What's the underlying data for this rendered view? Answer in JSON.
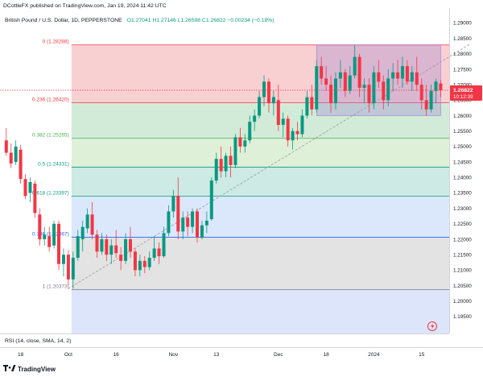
{
  "header": {
    "publisher": "DCottleFX published on TradingView.com, Jan 19, 2024 11:42 UTC",
    "instrument": "British Pound / U.S. Dollar, 1D, PEPPERSTONE",
    "ohlc_text": "O1.27041  H1.27146  L1.26598  C1.26822  −0.00234 (−0.18%)"
  },
  "indicator": {
    "label": "RSI (14, close, SMA, 14, 2)"
  },
  "footer": {
    "brand": "TradingView"
  },
  "price_label": {
    "price": "1.26822",
    "countdown": "10:12:39"
  },
  "colors": {
    "up": "#089981",
    "down": "#f23645",
    "trend": "#9598a1",
    "price_line": "#f23645",
    "box": "#9c7fd1"
  },
  "chart_data": {
    "type": "candlestick",
    "title": "British Pound / U.S. Dollar, 1D, PEPPERSTONE",
    "price_range": [
      1.1895,
      1.2935
    ],
    "y_ticks": [
      "1.29000",
      "1.28500",
      "1.28000",
      "1.27500",
      "1.27000",
      "1.26500",
      "1.26000",
      "1.25500",
      "1.25000",
      "1.24500",
      "1.24000",
      "1.23500",
      "1.23000",
      "1.22500",
      "1.22000",
      "1.21500",
      "1.21000",
      "1.20500",
      "1.20000",
      "1.19500"
    ],
    "x_ticks": [
      {
        "label": "18",
        "bar": 3
      },
      {
        "label": "Oct",
        "bar": 13
      },
      {
        "label": "16",
        "bar": 23
      },
      {
        "label": "Nov",
        "bar": 35
      },
      {
        "label": "13",
        "bar": 44
      },
      {
        "label": "Dec",
        "bar": 57
      },
      {
        "label": "18",
        "bar": 67
      },
      {
        "label": "2024",
        "bar": 77
      },
      {
        "label": "15",
        "bar": 87
      }
    ],
    "fibonacci": [
      {
        "ratio": "0",
        "price": 1.28288,
        "label": "0 (1.28288)",
        "color": "#f23645",
        "fill": "#f8d0d2"
      },
      {
        "ratio": "0.236",
        "price": 1.2642,
        "label": "0.236 (1.26420)",
        "color": "#f23645",
        "fill": "#d2ebd8"
      },
      {
        "ratio": "0.382",
        "price": 1.25265,
        "label": "0.382 (1.25265)",
        "color": "#4caf50",
        "fill": "#dff0d8"
      },
      {
        "ratio": "0.5",
        "price": 1.24331,
        "label": "0.5 (1.24331)",
        "color": "#089981",
        "fill": "#cdeae4"
      },
      {
        "ratio": "0.618",
        "price": 1.23397,
        "label": "0.618 (1.23397)",
        "color": "#089981",
        "fill": "#dbe8fb"
      },
      {
        "ratio": "0.786",
        "price": 1.22067,
        "label": "0.786 (1.22067)",
        "color": "#2962ff",
        "fill": "#e3e3e3"
      },
      {
        "ratio": "1",
        "price": 1.20373,
        "label": "1 (1.20373)",
        "color": "#787b86",
        "fill": "#dde5fb"
      }
    ],
    "fib_start_bar": 14,
    "trendline": {
      "start": {
        "bar": 13,
        "price": 1.204
      },
      "end": {
        "bar": 97,
        "price": 1.283
      }
    },
    "range_box": {
      "start_bar": 65,
      "end_bar": 91,
      "high": 1.2828,
      "low": 1.26
    },
    "last_price": 1.26822,
    "candles": [
      [
        1.252,
        1.256,
        1.247,
        1.248
      ],
      [
        1.248,
        1.251,
        1.243,
        1.2445
      ],
      [
        1.245,
        1.252,
        1.244,
        1.25
      ],
      [
        1.249,
        1.2505,
        1.238,
        1.2395
      ],
      [
        1.2395,
        1.241,
        1.233,
        1.234
      ],
      [
        1.235,
        1.24,
        1.232,
        1.2385
      ],
      [
        1.238,
        1.239,
        1.227,
        1.2285
      ],
      [
        1.228,
        1.23,
        1.218,
        1.22
      ],
      [
        1.22,
        1.224,
        1.218,
        1.2215
      ],
      [
        1.221,
        1.224,
        1.216,
        1.2175
      ],
      [
        1.218,
        1.226,
        1.217,
        1.225
      ],
      [
        1.225,
        1.226,
        1.21,
        1.212
      ],
      [
        1.212,
        1.217,
        1.208,
        1.215
      ],
      [
        1.215,
        1.2165,
        1.205,
        1.207
      ],
      [
        1.207,
        1.216,
        1.204,
        1.214
      ],
      [
        1.214,
        1.223,
        1.213,
        1.221
      ],
      [
        1.22,
        1.226,
        1.216,
        1.224
      ],
      [
        1.2235,
        1.23,
        1.222,
        1.228
      ],
      [
        1.228,
        1.232,
        1.22,
        1.2215
      ],
      [
        1.2215,
        1.223,
        1.214,
        1.216
      ],
      [
        1.216,
        1.222,
        1.215,
        1.22
      ],
      [
        1.22,
        1.2215,
        1.213,
        1.215
      ],
      [
        1.215,
        1.22,
        1.212,
        1.218
      ],
      [
        1.218,
        1.223,
        1.214,
        1.2155
      ],
      [
        1.215,
        1.2175,
        1.21,
        1.213
      ],
      [
        1.213,
        1.222,
        1.212,
        1.22
      ],
      [
        1.22,
        1.224,
        1.214,
        1.216
      ],
      [
        1.216,
        1.217,
        1.208,
        1.21
      ],
      [
        1.21,
        1.215,
        1.208,
        1.213
      ],
      [
        1.213,
        1.2145,
        1.209,
        1.211
      ],
      [
        1.211,
        1.216,
        1.21,
        1.214
      ],
      [
        1.214,
        1.221,
        1.213,
        1.217
      ],
      [
        1.217,
        1.219,
        1.212,
        1.2145
      ],
      [
        1.2145,
        1.224,
        1.214,
        1.222
      ],
      [
        1.222,
        1.231,
        1.221,
        1.229
      ],
      [
        1.229,
        1.236,
        1.227,
        1.234
      ],
      [
        1.234,
        1.24,
        1.22,
        1.2225
      ],
      [
        1.2225,
        1.229,
        1.22,
        1.227
      ],
      [
        1.227,
        1.229,
        1.221,
        1.224
      ],
      [
        1.224,
        1.23,
        1.222,
        1.229
      ],
      [
        1.229,
        1.23,
        1.219,
        1.2205
      ],
      [
        1.2205,
        1.226,
        1.22,
        1.2245
      ],
      [
        1.2245,
        1.229,
        1.222,
        1.226
      ],
      [
        1.2265,
        1.24,
        1.226,
        1.239
      ],
      [
        1.239,
        1.248,
        1.238,
        1.246
      ],
      [
        1.246,
        1.25,
        1.24,
        1.242
      ],
      [
        1.242,
        1.248,
        1.24,
        1.247
      ],
      [
        1.247,
        1.25,
        1.24,
        1.244
      ],
      [
        1.244,
        1.254,
        1.243,
        1.253
      ],
      [
        1.253,
        1.256,
        1.248,
        1.25
      ],
      [
        1.25,
        1.254,
        1.248,
        1.252
      ],
      [
        1.252,
        1.26,
        1.251,
        1.258
      ],
      [
        1.258,
        1.262,
        1.255,
        1.26
      ],
      [
        1.26,
        1.268,
        1.259,
        1.266
      ],
      [
        1.266,
        1.273,
        1.263,
        1.271
      ],
      [
        1.271,
        1.272,
        1.261,
        1.264
      ],
      [
        1.264,
        1.268,
        1.26,
        1.266
      ],
      [
        1.265,
        1.27,
        1.255,
        1.257
      ],
      [
        1.257,
        1.261,
        1.253,
        1.259
      ],
      [
        1.259,
        1.26,
        1.25,
        1.252
      ],
      [
        1.252,
        1.256,
        1.249,
        1.255
      ],
      [
        1.255,
        1.258,
        1.252,
        1.254
      ],
      [
        1.254,
        1.262,
        1.253,
        1.26
      ],
      [
        1.26,
        1.268,
        1.259,
        1.266
      ],
      [
        1.266,
        1.27,
        1.26,
        1.262
      ],
      [
        1.262,
        1.278,
        1.261,
        1.276
      ],
      [
        1.276,
        1.279,
        1.27,
        1.272
      ],
      [
        1.272,
        1.276,
        1.268,
        1.27
      ],
      [
        1.27,
        1.273,
        1.261,
        1.264
      ],
      [
        1.264,
        1.274,
        1.262,
        1.272
      ],
      [
        1.272,
        1.278,
        1.269,
        1.274
      ],
      [
        1.274,
        1.275,
        1.266,
        1.268
      ],
      [
        1.268,
        1.276,
        1.267,
        1.273
      ],
      [
        1.273,
        1.2828,
        1.272,
        1.279
      ],
      [
        1.279,
        1.28,
        1.266,
        1.269
      ],
      [
        1.269,
        1.272,
        1.264,
        1.27
      ],
      [
        1.27,
        1.272,
        1.261,
        1.264
      ],
      [
        1.264,
        1.276,
        1.262,
        1.274
      ],
      [
        1.274,
        1.278,
        1.269,
        1.271
      ],
      [
        1.271,
        1.273,
        1.262,
        1.265
      ],
      [
        1.265,
        1.275,
        1.263,
        1.272
      ],
      [
        1.272,
        1.277,
        1.268,
        1.274
      ],
      [
        1.274,
        1.278,
        1.27,
        1.272
      ],
      [
        1.272,
        1.279,
        1.269,
        1.276
      ],
      [
        1.276,
        1.278,
        1.27,
        1.271
      ],
      [
        1.271,
        1.276,
        1.268,
        1.274
      ],
      [
        1.274,
        1.279,
        1.268,
        1.27
      ],
      [
        1.27,
        1.272,
        1.262,
        1.265
      ],
      [
        1.265,
        1.27,
        1.26,
        1.262
      ],
      [
        1.262,
        1.27,
        1.261,
        1.268
      ],
      [
        1.268,
        1.272,
        1.264,
        1.271
      ],
      [
        1.2704,
        1.2715,
        1.266,
        1.2682
      ]
    ]
  }
}
